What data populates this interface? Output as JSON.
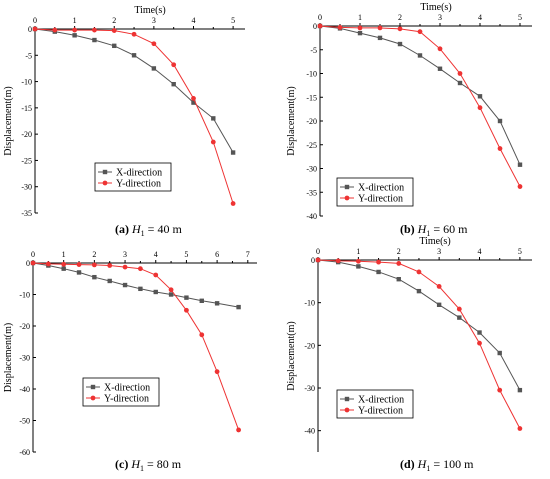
{
  "colors": {
    "x_series": "#555555",
    "y_series": "#ee3333"
  },
  "chart_data": [
    {
      "type": "line",
      "caption": {
        "letter": "(a)",
        "var": "H",
        "sub": "1",
        "rest": " = 40 m"
      },
      "xlabel": "Time(s)",
      "ylabel": "Displacement(m)",
      "xlim": [
        0,
        5.3
      ],
      "ylim": [
        -35,
        0
      ],
      "xticks": [
        0,
        1,
        2,
        3,
        4,
        5
      ],
      "yticks": [
        0,
        -5,
        -10,
        -15,
        -20,
        -25,
        -30,
        -35
      ],
      "legend": "bottom-left",
      "series": [
        {
          "name": "X-direction",
          "x": [
            0,
            0.5,
            1,
            1.5,
            2,
            2.5,
            3,
            3.5,
            4,
            4.5,
            5
          ],
          "y": [
            0,
            -0.5,
            -1.2,
            -2.1,
            -3.2,
            -5.0,
            -7.5,
            -10.5,
            -14.0,
            -17.0,
            -23.5
          ]
        },
        {
          "name": "Y-direction",
          "x": [
            0,
            0.5,
            1,
            1.5,
            2,
            2.5,
            3,
            3.5,
            4,
            4.5,
            5
          ],
          "y": [
            0,
            -0.2,
            -0.2,
            -0.2,
            -0.3,
            -1.0,
            -2.8,
            -6.8,
            -13.2,
            -21.5,
            -33.2
          ]
        }
      ]
    },
    {
      "type": "line",
      "caption": {
        "letter": "(b)",
        "var": "H",
        "sub": "1",
        "rest": " = 60 m"
      },
      "xlabel": "Time(s)",
      "ylabel": "Displacement(m)",
      "xlim": [
        0,
        5.3
      ],
      "ylim": [
        -40,
        0
      ],
      "xticks": [
        0,
        1,
        2,
        3,
        4,
        5
      ],
      "yticks": [
        0,
        -5,
        -10,
        -15,
        -20,
        -25,
        -30,
        -35,
        -40
      ],
      "legend": "bottom-left",
      "series": [
        {
          "name": "X-direction",
          "x": [
            0,
            0.5,
            1,
            1.5,
            2,
            2.5,
            3,
            3.5,
            4,
            4.5,
            5
          ],
          "y": [
            0,
            -0.5,
            -1.5,
            -2.5,
            -3.8,
            -6.2,
            -9.0,
            -12.0,
            -14.8,
            -20.0,
            -29.2
          ]
        },
        {
          "name": "Y-direction",
          "x": [
            0,
            0.5,
            1,
            1.5,
            2,
            2.5,
            3,
            3.5,
            4,
            4.5,
            5
          ],
          "y": [
            0,
            -0.3,
            -0.4,
            -0.4,
            -0.6,
            -1.2,
            -4.8,
            -10.0,
            -17.2,
            -25.8,
            -33.8
          ]
        }
      ]
    },
    {
      "type": "line",
      "caption": {
        "letter": "(c)",
        "var": "H",
        "sub": "1",
        "rest": " = 80 m"
      },
      "xlabel": "",
      "ylabel": "Displacement(m)",
      "xlim": [
        0,
        7.3
      ],
      "ylim": [
        -60,
        0
      ],
      "xticks": [
        0,
        1,
        2,
        3,
        4,
        5,
        6,
        7
      ],
      "yticks": [
        0,
        -10,
        -20,
        -30,
        -40,
        -50,
        -60
      ],
      "legend": "bottom-left",
      "series": [
        {
          "name": "X-direction",
          "x": [
            0,
            0.5,
            1,
            1.5,
            2,
            2.5,
            3,
            3.5,
            4,
            4.5,
            5,
            5.5,
            6,
            6.7
          ],
          "y": [
            0,
            -0.8,
            -1.8,
            -3.0,
            -4.5,
            -5.7,
            -7.0,
            -8.2,
            -9.2,
            -10.0,
            -11.0,
            -12.0,
            -12.8,
            -14.0
          ]
        },
        {
          "name": "Y-direction",
          "x": [
            0,
            0.5,
            1,
            1.5,
            2,
            2.5,
            3,
            3.5,
            4,
            4.5,
            5,
            5.5,
            6,
            6.7
          ],
          "y": [
            0,
            -0.3,
            -0.4,
            -0.5,
            -0.6,
            -0.8,
            -1.3,
            -1.8,
            -3.8,
            -8.5,
            -15.0,
            -22.8,
            -34.5,
            -53.0
          ]
        }
      ]
    },
    {
      "type": "line",
      "caption": {
        "letter": "(d)",
        "var": "H",
        "sub": "1",
        "rest": " = 100 m"
      },
      "xlabel": "Time(s)",
      "ylabel": "Displacement(m)",
      "xlim": [
        0,
        5.3
      ],
      "ylim": [
        -45,
        0
      ],
      "xticks": [
        0,
        1,
        2,
        3,
        4,
        5
      ],
      "yticks": [
        0,
        -10,
        -20,
        -30,
        -40
      ],
      "legend": "bottom-left",
      "series": [
        {
          "name": "X-direction",
          "x": [
            0,
            0.5,
            1,
            1.5,
            2,
            2.5,
            3,
            3.5,
            4,
            4.5,
            5
          ],
          "y": [
            0,
            -0.5,
            -1.5,
            -2.8,
            -4.5,
            -7.3,
            -10.5,
            -13.5,
            -17.0,
            -21.8,
            -30.5
          ]
        },
        {
          "name": "Y-direction",
          "x": [
            0,
            0.5,
            1,
            1.5,
            2,
            2.5,
            3,
            3.5,
            4,
            4.5,
            5
          ],
          "y": [
            0,
            -0.2,
            -0.3,
            -0.5,
            -0.8,
            -2.8,
            -6.2,
            -11.5,
            -19.5,
            -30.5,
            -39.5
          ]
        }
      ]
    }
  ]
}
